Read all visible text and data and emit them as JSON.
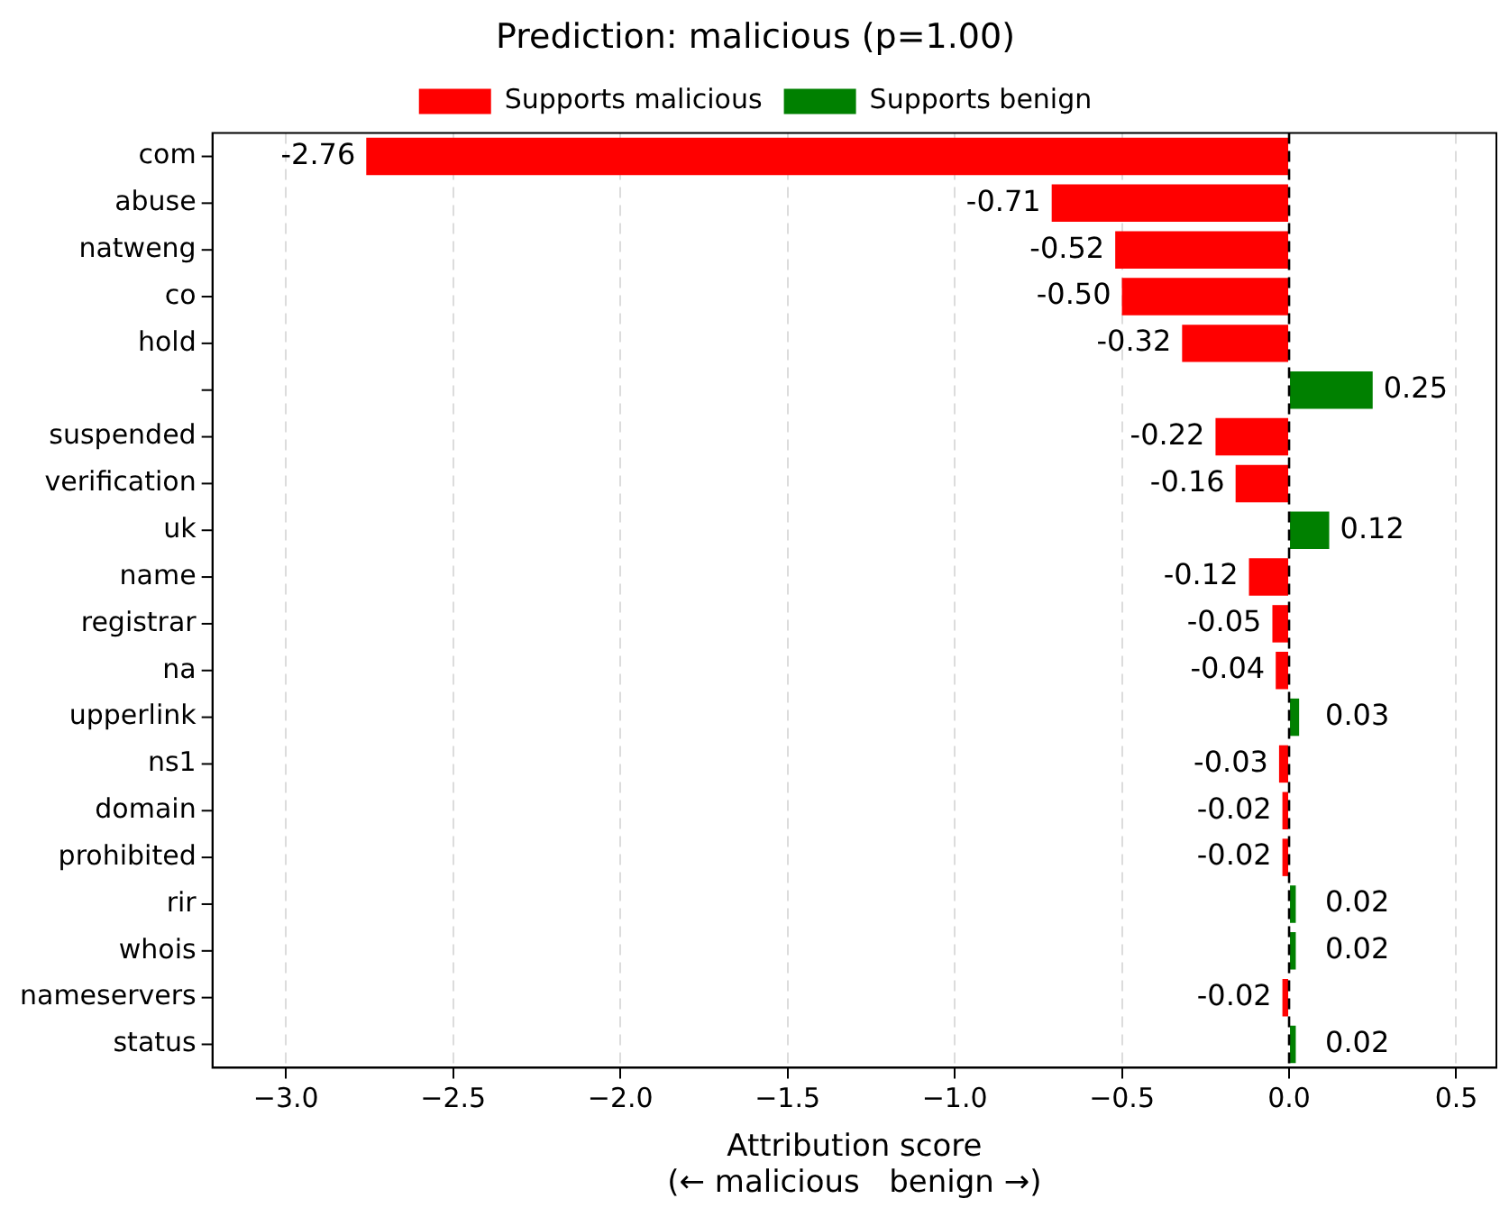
{
  "chart_data": {
    "type": "bar",
    "orientation": "horizontal",
    "title": "Prediction: malicious (p=1.00)",
    "xlabel": "Attribution score\n(← malicious   benign →)",
    "categories": [
      "com",
      "abuse",
      "natweng",
      "co",
      "hold",
      null,
      "suspended",
      "verification",
      "uk",
      "name",
      "registrar",
      "na",
      "upperlink",
      "ns1",
      "domain",
      "prohibited",
      "rir",
      "whois",
      "nameservers",
      "status"
    ],
    "series": [
      {
        "name": "Supports malicious",
        "color": "#ff0000",
        "values": [
          -2.76,
          -0.71,
          -0.52,
          -0.5,
          -0.32,
          null,
          -0.22,
          -0.16,
          null,
          -0.12,
          -0.05,
          -0.04,
          null,
          -0.03,
          -0.02,
          -0.02,
          null,
          null,
          -0.02,
          null
        ],
        "value_labels": [
          "-2.76",
          "-0.71",
          "-0.52",
          "-0.50",
          "-0.32",
          null,
          "-0.22",
          "-0.16",
          null,
          "-0.12",
          "-0.05",
          "-0.04",
          null,
          "-0.03",
          "-0.02",
          "-0.02",
          null,
          null,
          "-0.02",
          null
        ]
      },
      {
        "name": "Supports benign",
        "color": "#008000",
        "values": [
          null,
          null,
          null,
          null,
          null,
          0.25,
          null,
          null,
          0.12,
          null,
          null,
          null,
          0.03,
          null,
          null,
          null,
          0.02,
          0.02,
          null,
          0.02
        ],
        "value_labels": [
          null,
          null,
          null,
          null,
          null,
          "0.25",
          null,
          null,
          "0.12",
          null,
          null,
          null,
          "0.03",
          null,
          null,
          null,
          "0.02",
          "0.02",
          null,
          "0.02"
        ]
      }
    ],
    "xlim": [
      -3.22,
      0.62
    ],
    "xticks": [
      {
        "value": -3,
        "label": "−3.0"
      },
      {
        "value": -2.5,
        "label": "−2.5"
      },
      {
        "value": -2,
        "label": "−2.0"
      },
      {
        "value": -1.5,
        "label": "−1.5"
      },
      {
        "value": -1,
        "label": "−1.0"
      },
      {
        "value": -0.5,
        "label": "−0.5"
      },
      {
        "value": 0,
        "label": "0.0"
      },
      {
        "value": 0.5,
        "label": "0.5"
      }
    ],
    "grid": "x",
    "legend": "top",
    "line_style": "dashed",
    "ref_lines": [
      {
        "axis": "x",
        "value": 0,
        "color": "#000000",
        "line_style": "dashed"
      }
    ]
  }
}
